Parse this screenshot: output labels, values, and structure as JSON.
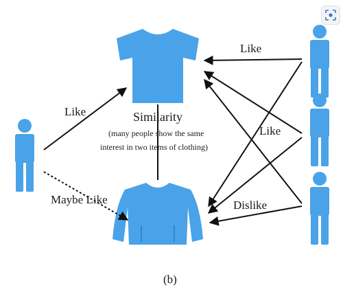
{
  "labels": {
    "like_left": "Like",
    "like_top_right": "Like",
    "like_mid_right": "Like",
    "dislike": "Dislike",
    "maybe_like": "Maybe Like",
    "similarity": "Similarity",
    "similarity_note_1": "(many people show the same",
    "similarity_note_2": "interest in two items of clothing)",
    "caption": "(b)"
  },
  "icons": {
    "lens": "visual-search-icon",
    "person": "person-icon",
    "tshirt": "tshirt-icon",
    "sweater": "sweater-icon"
  },
  "colors": {
    "figure_blue": "#4aa3e8",
    "line": "#111111"
  }
}
